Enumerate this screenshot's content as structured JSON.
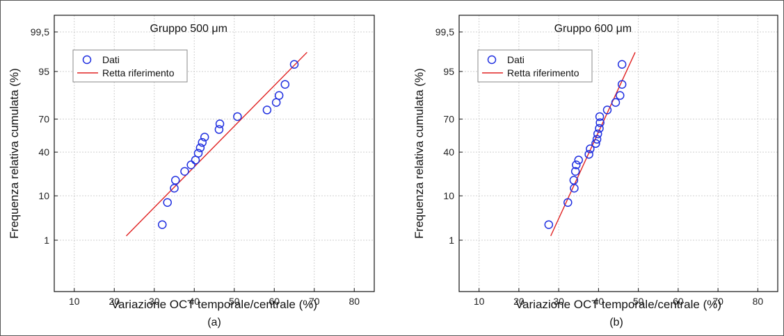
{
  "chart_data": [
    {
      "type": "scatter",
      "panel_label": "(a)",
      "title": "Gruppo 500 μm",
      "xlabel": "Variazione OCT temporale/centrale (%)",
      "ylabel": "Frequenza relativa cumulata (%)",
      "xlim": [
        5,
        85
      ],
      "x_ticks": [
        "10",
        "20",
        "30",
        "40",
        "50",
        "60",
        "70",
        "80"
      ],
      "y_ticks": [
        "1",
        "10",
        "40",
        "70",
        "95",
        "99,5"
      ],
      "y_scale": "probability",
      "grid": true,
      "legend_position": "top-left",
      "series": [
        {
          "name": "Dati",
          "marker": "open-circle",
          "color": "#1f2fe0",
          "points": [
            [
              32.0,
              2.5
            ],
            [
              33.3,
              7.5
            ],
            [
              35.0,
              13.5
            ],
            [
              35.3,
              18.0
            ],
            [
              37.6,
              24.0
            ],
            [
              39.2,
              29.0
            ],
            [
              40.3,
              33.0
            ],
            [
              41.0,
              39.0
            ],
            [
              41.5,
              44.0
            ],
            [
              42.0,
              49.0
            ],
            [
              42.6,
              54.0
            ],
            [
              46.2,
              61.0
            ],
            [
              46.4,
              66.0
            ],
            [
              50.8,
              72.0
            ],
            [
              58.2,
              77.0
            ],
            [
              60.5,
              82.0
            ],
            [
              61.2,
              86.0
            ],
            [
              62.7,
              91.0
            ],
            [
              65.0,
              96.5
            ]
          ]
        },
        {
          "name": "Retta riferimento",
          "type": "line",
          "color": "#e02020",
          "points": [
            [
              23.0,
              1.3
            ],
            [
              68.2,
              98.2
            ]
          ]
        }
      ]
    },
    {
      "type": "scatter",
      "panel_label": "(b)",
      "title": "Gruppo 600 μm",
      "xlabel": "Variazione OCT temporale/centrale (%)",
      "ylabel": "Frequenza relativa cumulata (%)",
      "xlim": [
        5,
        85
      ],
      "x_ticks": [
        "10",
        "20",
        "30",
        "40",
        "50",
        "60",
        "70",
        "80"
      ],
      "y_ticks": [
        "1",
        "10",
        "40",
        "70",
        "95",
        "99,5"
      ],
      "y_scale": "probability",
      "grid": true,
      "legend_position": "top-left",
      "series": [
        {
          "name": "Dati",
          "marker": "open-circle",
          "color": "#1f2fe0",
          "points": [
            [
              27.5,
              2.5
            ],
            [
              32.3,
              7.5
            ],
            [
              33.9,
              13.5
            ],
            [
              33.8,
              18.0
            ],
            [
              34.2,
              24.0
            ],
            [
              34.4,
              29.0
            ],
            [
              35.0,
              33.0
            ],
            [
              37.6,
              38.0
            ],
            [
              37.9,
              43.0
            ],
            [
              39.3,
              48.0
            ],
            [
              39.6,
              52.0
            ],
            [
              39.8,
              57.0
            ],
            [
              40.2,
              62.0
            ],
            [
              40.4,
              67.0
            ],
            [
              40.3,
              72.0
            ],
            [
              42.2,
              77.0
            ],
            [
              44.3,
              82.0
            ],
            [
              45.4,
              86.0
            ],
            [
              45.9,
              91.0
            ],
            [
              45.9,
              96.5
            ]
          ]
        },
        {
          "name": "Retta riferimento",
          "type": "line",
          "color": "#e02020",
          "points": [
            [
              28.0,
              1.3
            ],
            [
              49.2,
              98.2
            ]
          ]
        }
      ]
    }
  ]
}
